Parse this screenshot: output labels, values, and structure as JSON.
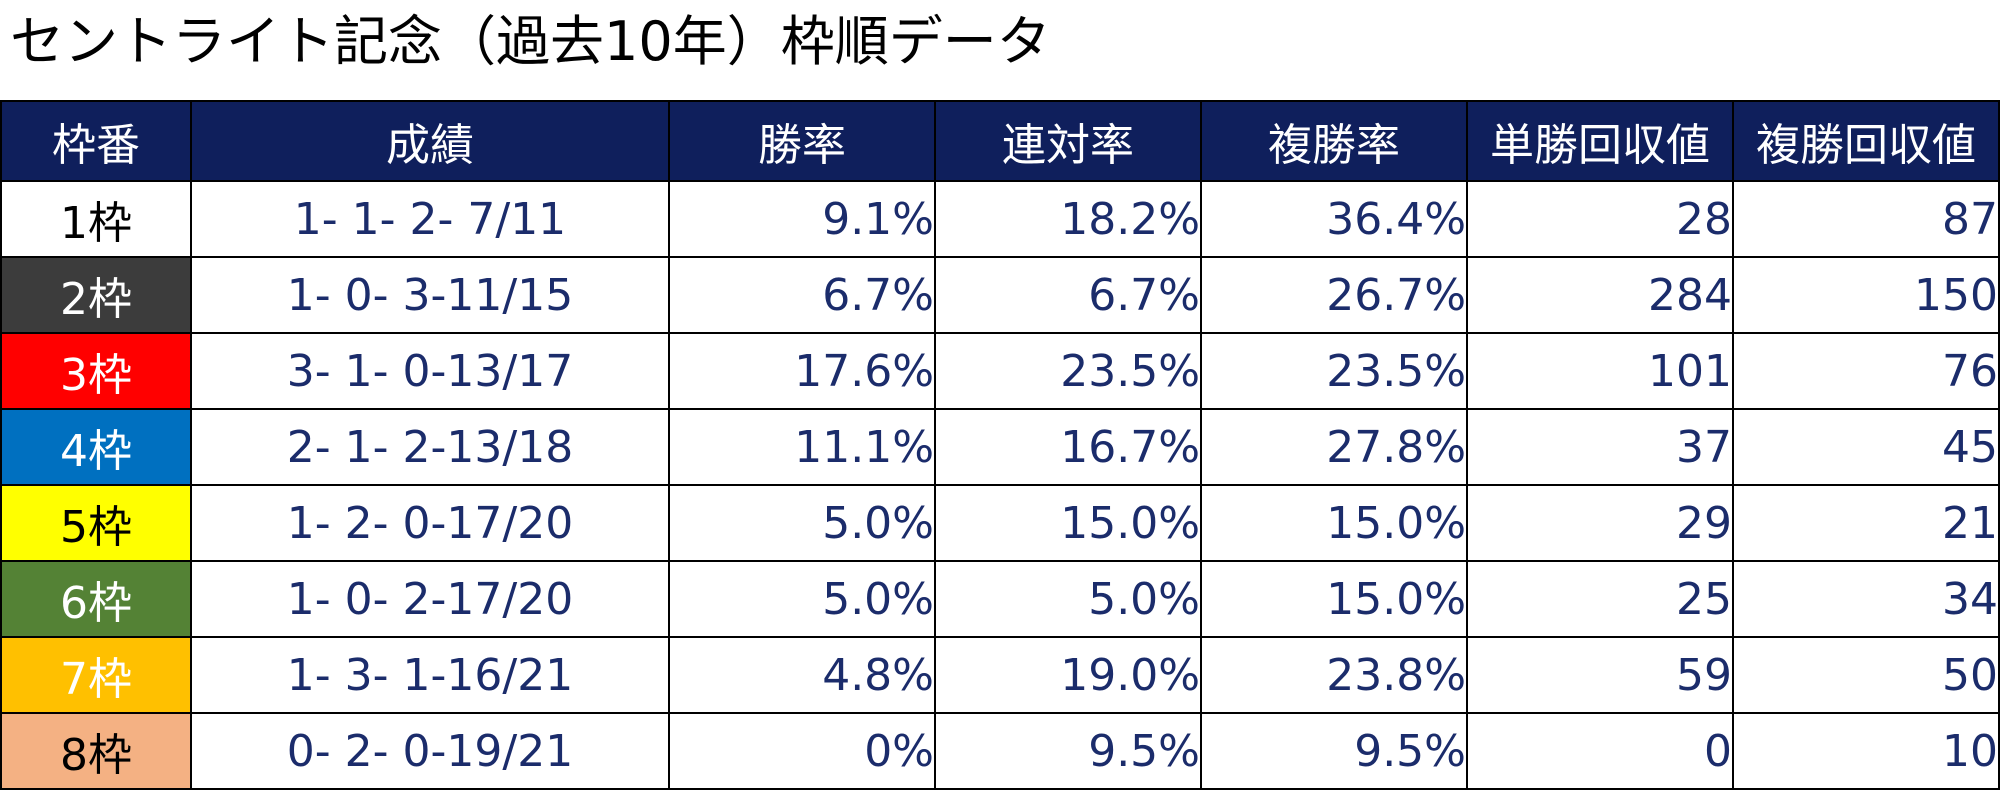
{
  "title": "セントライト記念（過去10年）枠順データ",
  "table": {
    "headers": [
      "枠番",
      "成績",
      "勝率",
      "連対率",
      "複勝率",
      "単勝回収値",
      "複勝回収値"
    ],
    "rows": [
      {
        "waku": "1枠",
        "bg": "#ffffff",
        "fg": "#000000",
        "record": "1- 1- 2- 7/11",
        "win_rate": "9.1%",
        "quinella_rate": "18.2%",
        "show_rate": "36.4%",
        "win_return": "28",
        "show_return": "87"
      },
      {
        "waku": "2枠",
        "bg": "#3c3c3c",
        "fg": "#ffffff",
        "record": "1- 0- 3-11/15",
        "win_rate": "6.7%",
        "quinella_rate": "6.7%",
        "show_rate": "26.7%",
        "win_return": "284",
        "show_return": "150"
      },
      {
        "waku": "3枠",
        "bg": "#ff0000",
        "fg": "#ffffff",
        "record": "3- 1- 0-13/17",
        "win_rate": "17.6%",
        "quinella_rate": "23.5%",
        "show_rate": "23.5%",
        "win_return": "101",
        "show_return": "76"
      },
      {
        "waku": "4枠",
        "bg": "#0070c0",
        "fg": "#ffffff",
        "record": "2- 1- 2-13/18",
        "win_rate": "11.1%",
        "quinella_rate": "16.7%",
        "show_rate": "27.8%",
        "win_return": "37",
        "show_return": "45"
      },
      {
        "waku": "5枠",
        "bg": "#ffff00",
        "fg": "#000000",
        "record": "1- 2- 0-17/20",
        "win_rate": "5.0%",
        "quinella_rate": "15.0%",
        "show_rate": "15.0%",
        "win_return": "29",
        "show_return": "21"
      },
      {
        "waku": "6枠",
        "bg": "#548235",
        "fg": "#ffffff",
        "record": "1- 0- 2-17/20",
        "win_rate": "5.0%",
        "quinella_rate": "5.0%",
        "show_rate": "15.0%",
        "win_return": "25",
        "show_return": "34"
      },
      {
        "waku": "7枠",
        "bg": "#ffc000",
        "fg": "#ffffff",
        "record": "1- 3- 1-16/21",
        "win_rate": "4.8%",
        "quinella_rate": "19.0%",
        "show_rate": "23.8%",
        "win_return": "59",
        "show_return": "50"
      },
      {
        "waku": "8枠",
        "bg": "#f4b183",
        "fg": "#000000",
        "record": "0- 2- 0-19/21",
        "win_rate": "0%",
        "quinella_rate": "9.5%",
        "show_rate": "9.5%",
        "win_return": "0",
        "show_return": "10"
      }
    ]
  },
  "colors": {
    "header_bg": "#0f1f5c",
    "header_text": "#ffffff",
    "cell_text": "#1b2c6b",
    "border": "#000000"
  }
}
